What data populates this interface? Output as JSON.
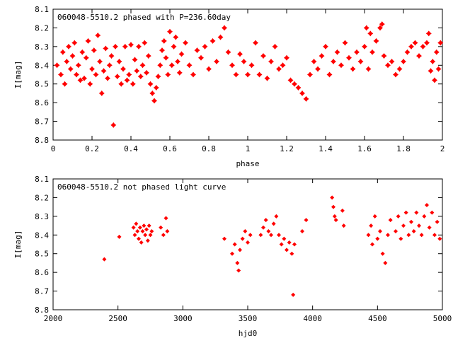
{
  "chart_data": [
    {
      "type": "scatter",
      "title": "060048-5510.2 phased with P=236.60day",
      "xlabel": "phase",
      "ylabel": "I[mag]",
      "xlim": [
        0,
        2
      ],
      "ylim": [
        8.1,
        8.8
      ],
      "y_inverted": true,
      "grid": false,
      "marker_color": "#ff0000",
      "marker": "filled-star",
      "x_ticks": [
        "0",
        "0.2",
        "0.4",
        "0.6",
        "0.8",
        "1",
        "1.2",
        "1.4",
        "1.6",
        "1.8",
        "2"
      ],
      "y_ticks": [
        "8.1",
        "8.2",
        "8.3",
        "8.4",
        "8.5",
        "8.6",
        "8.7",
        "8.8"
      ],
      "points": [
        [
          0.02,
          8.4
        ],
        [
          0.04,
          8.45
        ],
        [
          0.05,
          8.33
        ],
        [
          0.06,
          8.5
        ],
        [
          0.07,
          8.38
        ],
        [
          0.08,
          8.3
        ],
        [
          0.09,
          8.42
        ],
        [
          0.1,
          8.35
        ],
        [
          0.11,
          8.28
        ],
        [
          0.12,
          8.45
        ],
        [
          0.13,
          8.4
        ],
        [
          0.14,
          8.48
        ],
        [
          0.15,
          8.33
        ],
        [
          0.16,
          8.47
        ],
        [
          0.17,
          8.36
        ],
        [
          0.18,
          8.27
        ],
        [
          0.19,
          8.5
        ],
        [
          0.2,
          8.42
        ],
        [
          0.21,
          8.32
        ],
        [
          0.22,
          8.45
        ],
        [
          0.23,
          8.24
        ],
        [
          0.24,
          8.38
        ],
        [
          0.25,
          8.55
        ],
        [
          0.26,
          8.43
        ],
        [
          0.27,
          8.31
        ],
        [
          0.28,
          8.47
        ],
        [
          0.29,
          8.4
        ],
        [
          0.3,
          8.35
        ],
        [
          0.31,
          8.72
        ],
        [
          0.32,
          8.3
        ],
        [
          0.33,
          8.46
        ],
        [
          0.34,
          8.38
        ],
        [
          0.35,
          8.5
        ],
        [
          0.36,
          8.42
        ],
        [
          0.37,
          8.3
        ],
        [
          0.38,
          8.48
        ],
        [
          0.39,
          8.45
        ],
        [
          0.4,
          8.29
        ],
        [
          0.41,
          8.5
        ],
        [
          0.42,
          8.37
        ],
        [
          0.43,
          8.43
        ],
        [
          0.44,
          8.3
        ],
        [
          0.45,
          8.46
        ],
        [
          0.46,
          8.4
        ],
        [
          0.47,
          8.28
        ],
        [
          0.48,
          8.44
        ],
        [
          0.49,
          8.35
        ],
        [
          0.5,
          8.5
        ],
        [
          0.51,
          8.55
        ],
        [
          0.52,
          8.59
        ],
        [
          0.53,
          8.52
        ],
        [
          0.54,
          8.46
        ],
        [
          0.55,
          8.4
        ],
        [
          0.56,
          8.32
        ],
        [
          0.57,
          8.27
        ],
        [
          0.58,
          8.36
        ],
        [
          0.59,
          8.45
        ],
        [
          0.6,
          8.22
        ],
        [
          0.61,
          8.4
        ],
        [
          0.62,
          8.3
        ],
        [
          0.63,
          8.25
        ],
        [
          0.64,
          8.38
        ],
        [
          0.65,
          8.44
        ],
        [
          0.66,
          8.34
        ],
        [
          0.68,
          8.28
        ],
        [
          0.7,
          8.4
        ],
        [
          0.72,
          8.45
        ],
        [
          0.74,
          8.32
        ],
        [
          0.76,
          8.36
        ],
        [
          0.78,
          8.3
        ],
        [
          0.8,
          8.42
        ],
        [
          0.82,
          8.27
        ],
        [
          0.84,
          8.38
        ],
        [
          0.86,
          8.25
        ],
        [
          0.88,
          8.2
        ],
        [
          0.9,
          8.33
        ],
        [
          0.92,
          8.4
        ],
        [
          0.94,
          8.45
        ],
        [
          0.96,
          8.34
        ],
        [
          0.98,
          8.38
        ],
        [
          1.0,
          8.45
        ],
        [
          1.02,
          8.4
        ],
        [
          1.04,
          8.28
        ],
        [
          1.06,
          8.45
        ],
        [
          1.08,
          8.35
        ],
        [
          1.1,
          8.47
        ],
        [
          1.12,
          8.38
        ],
        [
          1.14,
          8.3
        ],
        [
          1.16,
          8.42
        ],
        [
          1.18,
          8.4
        ],
        [
          1.2,
          8.36
        ],
        [
          1.22,
          8.48
        ],
        [
          1.24,
          8.5
        ],
        [
          1.26,
          8.52
        ],
        [
          1.28,
          8.55
        ],
        [
          1.3,
          8.58
        ],
        [
          1.32,
          8.45
        ],
        [
          1.34,
          8.38
        ],
        [
          1.36,
          8.42
        ],
        [
          1.38,
          8.35
        ],
        [
          1.4,
          8.3
        ],
        [
          1.42,
          8.45
        ],
        [
          1.44,
          8.38
        ],
        [
          1.46,
          8.33
        ],
        [
          1.48,
          8.4
        ],
        [
          1.5,
          8.28
        ],
        [
          1.52,
          8.36
        ],
        [
          1.54,
          8.42
        ],
        [
          1.56,
          8.33
        ],
        [
          1.58,
          8.38
        ],
        [
          1.6,
          8.3
        ],
        [
          1.61,
          8.2
        ],
        [
          1.62,
          8.42
        ],
        [
          1.63,
          8.23
        ],
        [
          1.64,
          8.33
        ],
        [
          1.66,
          8.27
        ],
        [
          1.68,
          8.2
        ],
        [
          1.69,
          8.18
        ],
        [
          1.7,
          8.35
        ],
        [
          1.72,
          8.4
        ],
        [
          1.74,
          8.38
        ],
        [
          1.76,
          8.45
        ],
        [
          1.78,
          8.42
        ],
        [
          1.8,
          8.38
        ],
        [
          1.82,
          8.33
        ],
        [
          1.84,
          8.3
        ],
        [
          1.86,
          8.28
        ],
        [
          1.88,
          8.35
        ],
        [
          1.9,
          8.3
        ],
        [
          1.92,
          8.28
        ],
        [
          1.93,
          8.23
        ],
        [
          1.94,
          8.43
        ],
        [
          1.95,
          8.38
        ],
        [
          1.96,
          8.48
        ],
        [
          1.97,
          8.33
        ],
        [
          1.98,
          8.42
        ],
        [
          1.99,
          8.28
        ]
      ]
    },
    {
      "type": "scatter",
      "title": "060048-5510.2 not phased light curve",
      "xlabel": "hjd0",
      "ylabel": "I[mag]",
      "xlim": [
        2000,
        5000
      ],
      "ylim": [
        8.1,
        8.8
      ],
      "y_inverted": true,
      "grid": false,
      "marker_color": "#ff0000",
      "marker": "filled-diamond",
      "x_ticks": [
        "2000",
        "2500",
        "3000",
        "3500",
        "4000",
        "4500",
        "5000"
      ],
      "y_ticks": [
        "8.1",
        "8.2",
        "8.3",
        "8.4",
        "8.5",
        "8.6",
        "8.7",
        "8.8"
      ],
      "points": [
        [
          2395,
          8.53
        ],
        [
          2510,
          8.41
        ],
        [
          2620,
          8.36
        ],
        [
          2630,
          8.4
        ],
        [
          2640,
          8.34
        ],
        [
          2650,
          8.38
        ],
        [
          2660,
          8.42
        ],
        [
          2670,
          8.36
        ],
        [
          2680,
          8.44
        ],
        [
          2690,
          8.38
        ],
        [
          2700,
          8.35
        ],
        [
          2710,
          8.4
        ],
        [
          2720,
          8.37
        ],
        [
          2730,
          8.43
        ],
        [
          2740,
          8.35
        ],
        [
          2750,
          8.4
        ],
        [
          2760,
          8.38
        ],
        [
          2830,
          8.36
        ],
        [
          2850,
          8.4
        ],
        [
          2870,
          8.31
        ],
        [
          2880,
          8.38
        ],
        [
          3320,
          8.42
        ],
        [
          3380,
          8.5
        ],
        [
          3400,
          8.45
        ],
        [
          3420,
          8.55
        ],
        [
          3430,
          8.59
        ],
        [
          3440,
          8.48
        ],
        [
          3460,
          8.42
        ],
        [
          3480,
          8.38
        ],
        [
          3500,
          8.44
        ],
        [
          3520,
          8.4
        ],
        [
          3600,
          8.4
        ],
        [
          3620,
          8.36
        ],
        [
          3640,
          8.32
        ],
        [
          3660,
          8.38
        ],
        [
          3680,
          8.4
        ],
        [
          3700,
          8.34
        ],
        [
          3720,
          8.3
        ],
        [
          3740,
          8.4
        ],
        [
          3760,
          8.45
        ],
        [
          3780,
          8.42
        ],
        [
          3800,
          8.48
        ],
        [
          3820,
          8.44
        ],
        [
          3840,
          8.5
        ],
        [
          3850,
          8.72
        ],
        [
          3860,
          8.45
        ],
        [
          3920,
          8.38
        ],
        [
          3950,
          8.32
        ],
        [
          4150,
          8.2
        ],
        [
          4160,
          8.25
        ],
        [
          4170,
          8.3
        ],
        [
          4180,
          8.32
        ],
        [
          4230,
          8.27
        ],
        [
          4240,
          8.35
        ],
        [
          4430,
          8.4
        ],
        [
          4450,
          8.35
        ],
        [
          4460,
          8.45
        ],
        [
          4480,
          8.3
        ],
        [
          4500,
          8.42
        ],
        [
          4520,
          8.38
        ],
        [
          4540,
          8.5
        ],
        [
          4560,
          8.55
        ],
        [
          4580,
          8.4
        ],
        [
          4600,
          8.32
        ],
        [
          4640,
          8.38
        ],
        [
          4660,
          8.3
        ],
        [
          4680,
          8.42
        ],
        [
          4700,
          8.35
        ],
        [
          4720,
          8.28
        ],
        [
          4740,
          8.4
        ],
        [
          4760,
          8.33
        ],
        [
          4780,
          8.38
        ],
        [
          4800,
          8.28
        ],
        [
          4820,
          8.35
        ],
        [
          4840,
          8.4
        ],
        [
          4860,
          8.3
        ],
        [
          4880,
          8.24
        ],
        [
          4900,
          8.36
        ],
        [
          4920,
          8.28
        ],
        [
          4940,
          8.4
        ],
        [
          4960,
          8.33
        ],
        [
          4980,
          8.42
        ]
      ]
    }
  ]
}
